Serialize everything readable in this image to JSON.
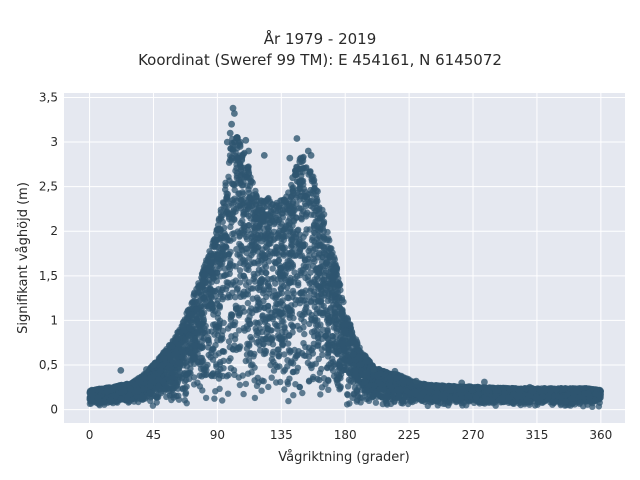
{
  "chart_data": {
    "type": "scatter",
    "title_line1": "År 1979 - 2019",
    "title_line2": "Koordinat (Sweref 99 TM): E 454161, N 6145072",
    "xlabel": "Vågriktning (grader)",
    "ylabel": "Signifikant våghöjd (m)",
    "xlim": [
      -18,
      377
    ],
    "ylim": [
      -0.15,
      3.55
    ],
    "x_ticks": [
      0,
      45,
      90,
      135,
      180,
      225,
      270,
      315,
      360
    ],
    "x_tick_labels": [
      "0",
      "45",
      "90",
      "135",
      "180",
      "225",
      "270",
      "315",
      "360"
    ],
    "y_ticks": [
      0,
      0.5,
      1,
      1.5,
      2,
      2.5,
      3,
      3.5
    ],
    "y_tick_labels": [
      "0",
      "0,5",
      "1",
      "1,5",
      "2",
      "2,5",
      "3",
      "3,5"
    ],
    "grid": true,
    "legend": "none",
    "marker_color": "#2f5670",
    "plot_background": "#e5e8f0",
    "envelope": {
      "x": [
        0,
        10,
        20,
        30,
        40,
        50,
        60,
        70,
        80,
        90,
        95,
        100,
        105,
        110,
        115,
        120,
        125,
        130,
        135,
        140,
        145,
        150,
        155,
        160,
        165,
        170,
        175,
        180,
        190,
        200,
        210,
        220,
        230,
        240,
        250,
        260,
        270,
        280,
        300,
        320,
        340,
        350,
        360
      ],
      "y": [
        0.22,
        0.24,
        0.27,
        0.3,
        0.42,
        0.6,
        0.8,
        1.15,
        1.6,
        2.05,
        2.45,
        3.05,
        3.08,
        2.85,
        2.55,
        2.35,
        2.4,
        2.3,
        2.35,
        2.45,
        2.75,
        2.85,
        2.75,
        2.5,
        2.2,
        1.85,
        1.55,
        1.1,
        0.7,
        0.48,
        0.42,
        0.38,
        0.3,
        0.28,
        0.27,
        0.26,
        0.26,
        0.25,
        0.24,
        0.24,
        0.24,
        0.24,
        0.22
      ]
    },
    "highlighted_points": [
      {
        "x": 101,
        "y": 3.38
      },
      {
        "x": 102,
        "y": 3.32
      },
      {
        "x": 100,
        "y": 3.2
      },
      {
        "x": 99,
        "y": 3.1
      },
      {
        "x": 97,
        "y": 3.0
      },
      {
        "x": 104,
        "y": 3.05
      },
      {
        "x": 106,
        "y": 2.95
      },
      {
        "x": 110,
        "y": 3.02
      },
      {
        "x": 112,
        "y": 2.9
      },
      {
        "x": 123,
        "y": 2.85
      },
      {
        "x": 146,
        "y": 3.04
      },
      {
        "x": 141,
        "y": 2.82
      },
      {
        "x": 154,
        "y": 2.9
      },
      {
        "x": 156,
        "y": 2.85
      },
      {
        "x": 148,
        "y": 2.78
      },
      {
        "x": 143,
        "y": 2.6
      },
      {
        "x": 137,
        "y": 2.35
      },
      {
        "x": 22,
        "y": 0.44
      },
      {
        "x": 40,
        "y": 0.45
      },
      {
        "x": 45,
        "y": 0.5
      },
      {
        "x": 200,
        "y": 0.45
      },
      {
        "x": 215,
        "y": 0.43
      },
      {
        "x": 230,
        "y": 0.32
      },
      {
        "x": 262,
        "y": 0.3
      },
      {
        "x": 278,
        "y": 0.31
      },
      {
        "x": 310,
        "y": 0.25
      }
    ]
  }
}
